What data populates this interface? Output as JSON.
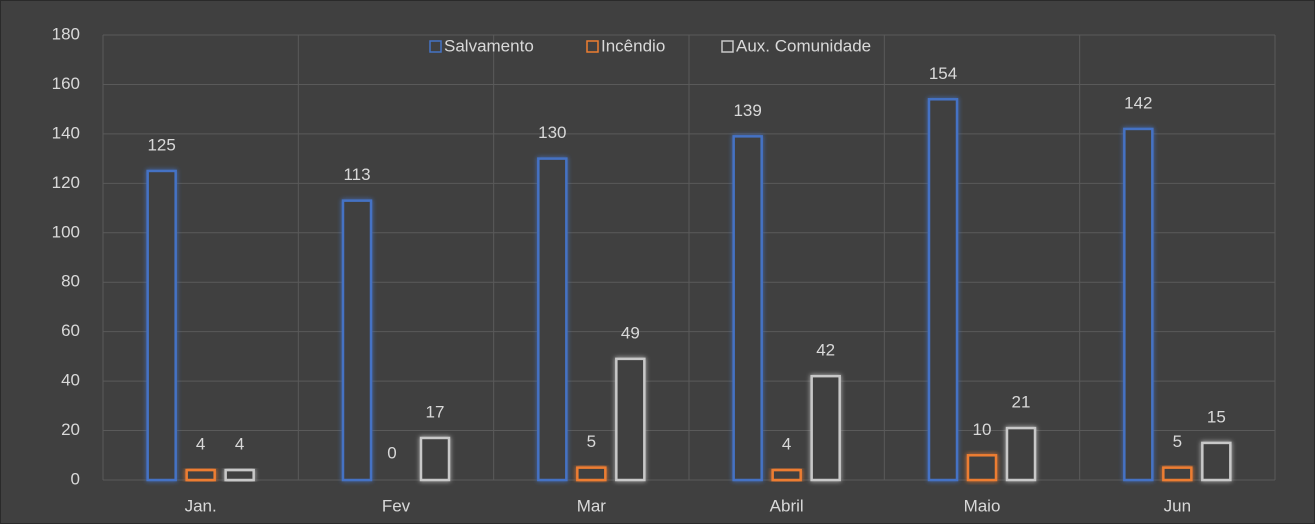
{
  "chart_data": {
    "type": "bar",
    "categories": [
      "Jan.",
      "Fev",
      "Mar",
      "Abril",
      "Maio",
      "Jun"
    ],
    "series": [
      {
        "name": "Salvamento",
        "color": "#4472c4",
        "values": [
          125,
          113,
          130,
          139,
          154,
          142
        ]
      },
      {
        "name": "Incêndio",
        "color": "#ed7d31",
        "values": [
          4,
          0,
          5,
          4,
          10,
          5
        ]
      },
      {
        "name": "Aux. Comunidade",
        "color": "#c8c8c8",
        "values": [
          4,
          17,
          49,
          42,
          21,
          15
        ]
      }
    ],
    "ylim": [
      0,
      180
    ],
    "yticks": [
      0,
      20,
      40,
      60,
      80,
      100,
      120,
      140,
      160,
      180
    ],
    "grid": true,
    "legend": "top"
  }
}
